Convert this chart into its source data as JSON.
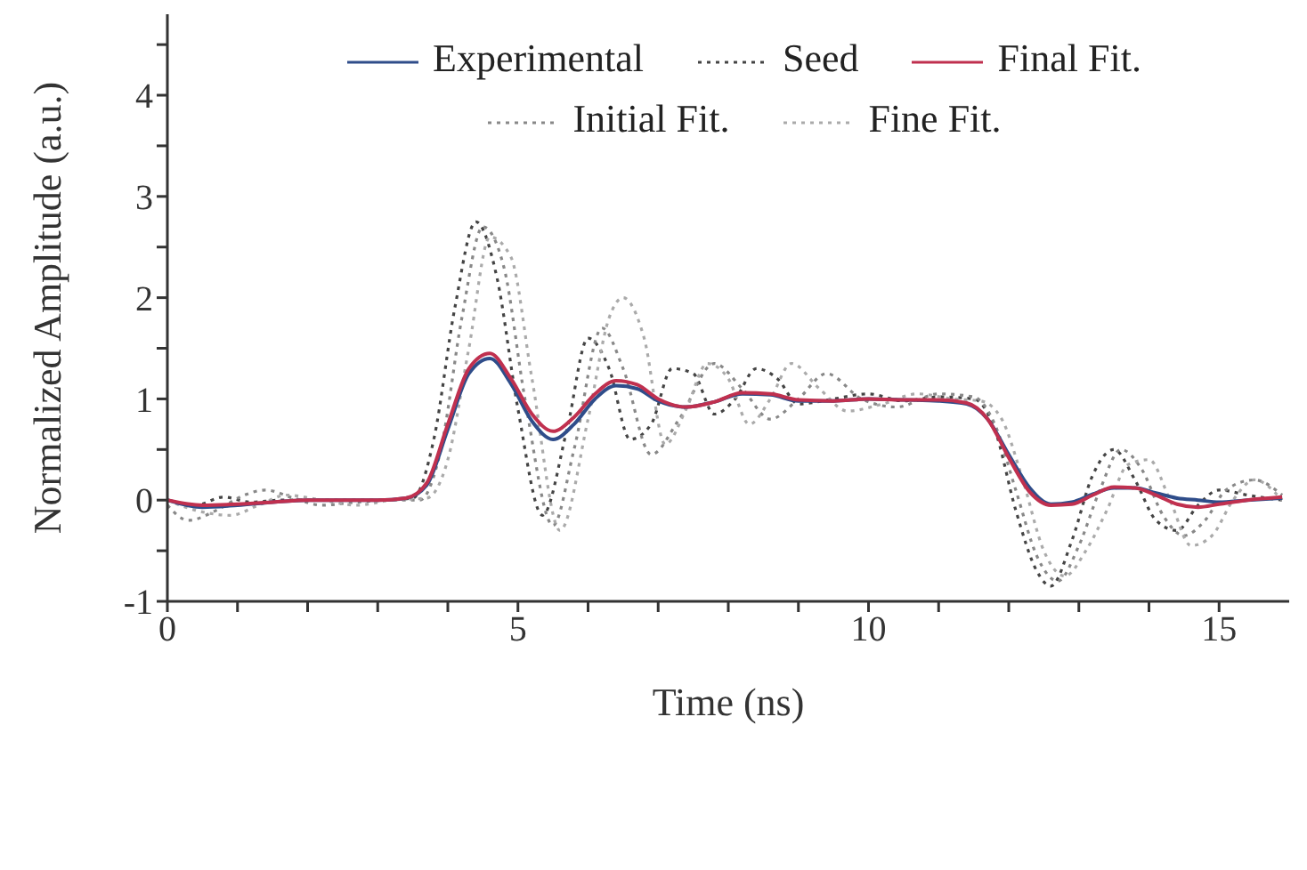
{
  "chart_data": {
    "type": "line",
    "xlabel": "Time (ns)",
    "ylabel": "Normalized Amplitude (a.u.)",
    "xlim": [
      0,
      16
    ],
    "ylim": [
      -1,
      4.8
    ],
    "xticks": [
      0,
      {
        "value": 1,
        "label": null
      },
      {
        "value": 2,
        "label": null
      },
      {
        "value": 3,
        "label": null
      },
      {
        "value": 4,
        "label": null
      },
      5,
      {
        "value": 6,
        "label": null
      },
      {
        "value": 7,
        "label": null
      },
      {
        "value": 8,
        "label": null
      },
      {
        "value": 9,
        "label": null
      },
      10,
      {
        "value": 11,
        "label": null
      },
      {
        "value": 12,
        "label": null
      },
      {
        "value": 13,
        "label": null
      },
      {
        "value": 14,
        "label": null
      },
      15
    ],
    "yticks": [
      -1,
      {
        "value": -0.5,
        "label": null
      },
      0,
      {
        "value": 0.5,
        "label": null
      },
      1,
      {
        "value": 1.5,
        "label": null
      },
      2,
      {
        "value": 2.5,
        "label": null
      },
      3,
      {
        "value": 3.5,
        "label": null
      },
      4,
      {
        "value": 4.5,
        "label": null
      }
    ],
    "grid": false,
    "legend": "top",
    "marker": "none",
    "series": [
      {
        "name": "Seed",
        "color": "#444444",
        "line_style": "dotted",
        "x": [
          0,
          0.4,
          0.8,
          1.2,
          1.6,
          2,
          2.5,
          3,
          3.5,
          3.8,
          4.1,
          4.4,
          4.7,
          5.0,
          5.35,
          5.7,
          6.0,
          6.3,
          6.6,
          6.9,
          7.2,
          7.5,
          7.8,
          8.1,
          8.4,
          8.7,
          9.0,
          9.5,
          10,
          10.5,
          11,
          11.5,
          11.8,
          12.1,
          12.4,
          12.6,
          12.9,
          13.2,
          13.5,
          13.8,
          14.1,
          14.4,
          14.7,
          15.0,
          15.4,
          15.9
        ],
        "values": [
          0,
          -0.05,
          0.03,
          -0.02,
          0,
          0,
          0,
          0,
          0.02,
          0.6,
          1.9,
          2.75,
          2.2,
          0.9,
          -0.15,
          0.7,
          1.6,
          1.3,
          0.6,
          0.75,
          1.3,
          1.25,
          0.85,
          1.0,
          1.3,
          1.2,
          0.95,
          1.0,
          1.05,
          0.98,
          1.02,
          1.0,
          0.7,
          -0.1,
          -0.7,
          -0.85,
          -0.4,
          0.25,
          0.5,
          0.2,
          -0.2,
          -0.3,
          -0.05,
          0.1,
          0.05,
          0.0
        ]
      },
      {
        "name": "Initial Fit.",
        "color": "#888888",
        "line_style": "dotted",
        "x": [
          0,
          0.3,
          0.7,
          1.1,
          1.4,
          1.8,
          2.2,
          2.7,
          3.2,
          3.6,
          3.9,
          4.2,
          4.5,
          4.8,
          5.1,
          5.5,
          5.8,
          6.2,
          6.5,
          6.9,
          7.3,
          7.8,
          8.2,
          8.6,
          9.0,
          9.4,
          9.9,
          10.4,
          11,
          11.5,
          11.8,
          12.1,
          12.4,
          12.7,
          13.0,
          13.3,
          13.6,
          13.9,
          14.2,
          14.5,
          14.8,
          15.1,
          15.5,
          15.9
        ],
        "values": [
          -0.05,
          -0.2,
          -0.1,
          0.05,
          0.1,
          0.02,
          -0.05,
          -0.02,
          0,
          0,
          0.5,
          1.8,
          2.7,
          2.3,
          1.0,
          -0.25,
          0.5,
          1.7,
          1.3,
          0.45,
          0.8,
          1.35,
          1.1,
          0.8,
          1.0,
          1.25,
          1.0,
          0.92,
          1.05,
          1.02,
          0.75,
          0.1,
          -0.55,
          -0.8,
          -0.45,
          0.1,
          0.5,
          0.3,
          -0.15,
          -0.35,
          -0.2,
          0.1,
          0.2,
          0.05
        ]
      },
      {
        "name": "Fine Fit.",
        "color": "#aaaaaa",
        "line_style": "dotted",
        "x": [
          0,
          0.4,
          0.9,
          1.3,
          1.7,
          2.2,
          2.7,
          3.2,
          3.7,
          4.0,
          4.3,
          4.6,
          4.9,
          5.2,
          5.6,
          6.0,
          6.3,
          6.5,
          6.8,
          7.1,
          7.4,
          7.7,
          8.0,
          8.3,
          8.6,
          8.9,
          9.3,
          9.7,
          10.2,
          10.7,
          11.2,
          11.6,
          11.9,
          12.2,
          12.5,
          12.8,
          13.1,
          13.4,
          13.7,
          14.0,
          14.3,
          14.6,
          14.9,
          15.2,
          15.5,
          15.9
        ],
        "values": [
          0,
          -0.1,
          -0.15,
          -0.05,
          0.05,
          0,
          -0.05,
          0,
          0.02,
          0.4,
          1.5,
          2.6,
          2.4,
          1.2,
          -0.3,
          0.8,
          1.8,
          2.0,
          1.6,
          0.55,
          0.9,
          1.35,
          1.2,
          0.75,
          1.0,
          1.35,
          1.1,
          0.88,
          0.95,
          1.05,
          1.0,
          0.98,
          0.8,
          0.2,
          -0.5,
          -0.75,
          -0.5,
          -0.1,
          0.35,
          0.4,
          0.0,
          -0.45,
          -0.35,
          0.0,
          0.2,
          0.0
        ]
      },
      {
        "name": "Experimental",
        "color": "#2f4d8a",
        "line_style": "solid",
        "x": [
          0,
          0.5,
          1,
          1.5,
          2,
          2.5,
          3,
          3.4,
          3.7,
          4.0,
          4.3,
          4.6,
          4.9,
          5.2,
          5.5,
          5.8,
          6.1,
          6.4,
          6.7,
          7.0,
          7.4,
          7.8,
          8.2,
          8.6,
          9.0,
          9.5,
          10,
          10.5,
          11,
          11.4,
          11.7,
          12.0,
          12.3,
          12.6,
          12.9,
          13.2,
          13.5,
          13.8,
          14.1,
          14.4,
          14.7,
          15.0,
          15.4,
          15.9
        ],
        "values": [
          0,
          -0.07,
          -0.05,
          -0.02,
          0,
          0,
          0,
          0.02,
          0.15,
          0.7,
          1.25,
          1.4,
          1.15,
          0.78,
          0.6,
          0.75,
          1.0,
          1.13,
          1.1,
          0.98,
          0.92,
          0.97,
          1.05,
          1.04,
          0.98,
          0.98,
          1.0,
          0.99,
          0.98,
          0.95,
          0.8,
          0.45,
          0.12,
          -0.04,
          -0.02,
          0.06,
          0.12,
          0.12,
          0.07,
          0.02,
          0.0,
          -0.02,
          0.0,
          0.02
        ]
      },
      {
        "name": "Final Fit.",
        "color": "#c0304f",
        "line_style": "solid",
        "x": [
          0,
          0.5,
          1,
          1.5,
          2,
          2.5,
          3,
          3.4,
          3.7,
          4.0,
          4.3,
          4.6,
          4.9,
          5.2,
          5.5,
          5.8,
          6.1,
          6.4,
          6.7,
          7.0,
          7.4,
          7.8,
          8.2,
          8.6,
          9.0,
          9.5,
          10,
          10.5,
          11,
          11.4,
          11.7,
          12.0,
          12.3,
          12.6,
          12.9,
          13.2,
          13.5,
          13.8,
          14.1,
          14.4,
          14.7,
          15.0,
          15.4,
          15.9
        ],
        "values": [
          0,
          -0.05,
          -0.04,
          -0.02,
          0,
          0,
          0,
          0.02,
          0.17,
          0.75,
          1.3,
          1.45,
          1.2,
          0.85,
          0.68,
          0.82,
          1.05,
          1.18,
          1.14,
          1.0,
          0.92,
          0.97,
          1.06,
          1.05,
          0.99,
          0.98,
          1.0,
          0.99,
          0.99,
          0.96,
          0.8,
          0.42,
          0.08,
          -0.05,
          -0.04,
          0.05,
          0.13,
          0.12,
          0.05,
          -0.04,
          -0.07,
          -0.04,
          0.0,
          0.03
        ]
      }
    ]
  }
}
